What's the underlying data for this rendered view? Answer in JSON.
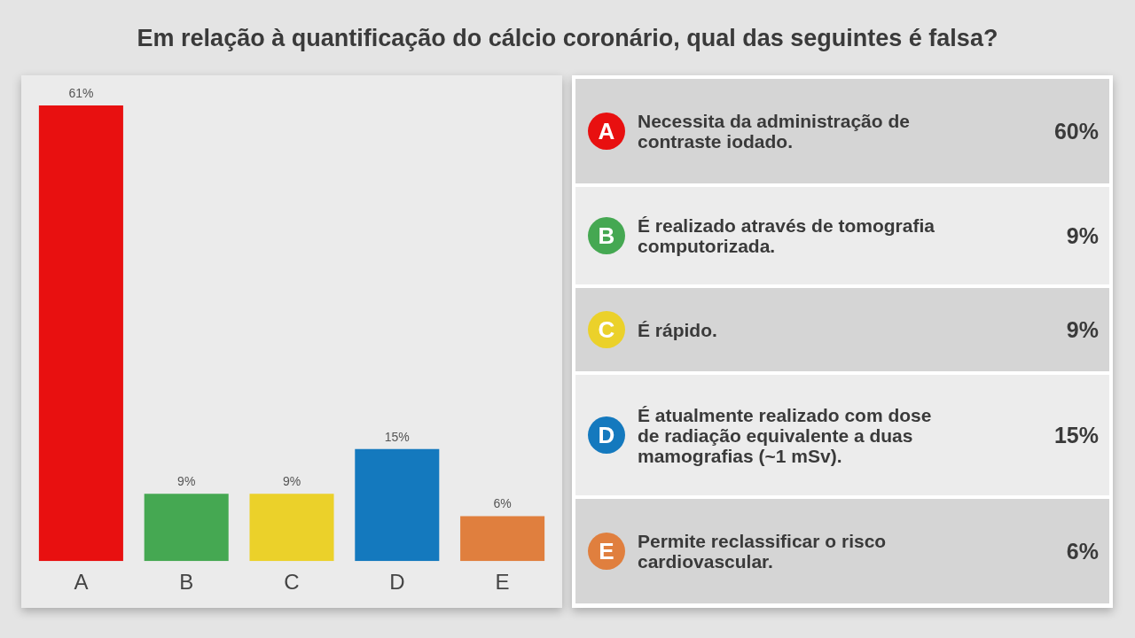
{
  "chart_data": [
    {
      "type": "bar",
      "title": "Em relação à quantificação do cálcio coronário, qual das seguintes é falsa?",
      "categories": [
        "A",
        "B",
        "C",
        "D",
        "E"
      ],
      "values": [
        61,
        9,
        9,
        15,
        6
      ],
      "value_labels": [
        "61%",
        "9%",
        "9%",
        "15%",
        "6%"
      ],
      "colors": [
        "#e81010",
        "#45a852",
        "#ebd12a",
        "#1479be",
        "#e07f3e"
      ]
    },
    {
      "type": "other",
      "categories": [
        "A",
        "B",
        "C",
        "D",
        "E"
      ],
      "annotations": [
        "Necessita da administração de contraste iodado.",
        "É realizado através de tomografia computorizada.",
        "É rápido.",
        "É atualmente realizado com dose de radiação equivalente a duas mamografias (~1 mSv).",
        "Permite reclassificar o risco cardiovascular."
      ],
      "values": [
        60,
        9,
        9,
        15,
        6
      ],
      "value_labels": [
        "60%",
        "9%",
        "9%",
        "15%",
        "6%"
      ]
    }
  ]
}
